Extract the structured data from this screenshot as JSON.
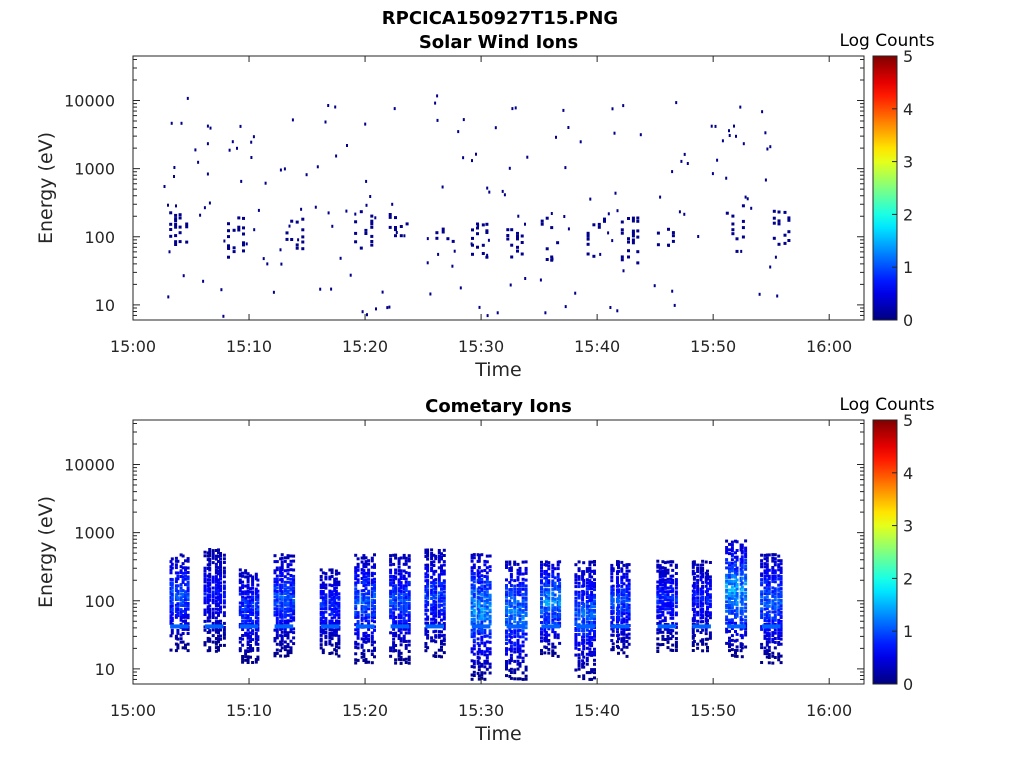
{
  "figure_title": "RPCICA150927T15.PNG",
  "colors": {
    "low": "#00008f",
    "mid": "#00ffff",
    "high": "#800000",
    "axis": "#262626",
    "background": "#ffffff"
  },
  "chart_data": [
    {
      "type": "heatmap",
      "title": "Solar Wind Ions",
      "xlabel": "Time",
      "ylabel": "Energy (eV)",
      "yscale": "log",
      "xlim": [
        "15:00",
        "16:03"
      ],
      "ylim": [
        6,
        45000
      ],
      "xticks": [
        "15:00",
        "15:10",
        "15:20",
        "15:30",
        "15:40",
        "15:50",
        "16:00"
      ],
      "yticks": [
        "10",
        "100",
        "1000",
        "10000"
      ],
      "colorbar": {
        "label": "Log Counts",
        "range": [
          0,
          5
        ],
        "ticks": [
          "0",
          "1",
          "2",
          "3",
          "4",
          "5"
        ]
      },
      "data_time_range": [
        "15:02",
        "15:56"
      ],
      "bursts": [
        {
          "time": "15:04",
          "energy_range": [
            50,
            300
          ],
          "peak_log_counts": 0
        },
        {
          "time": "15:09",
          "energy_range": [
            40,
            200
          ],
          "peak_log_counts": 0
        },
        {
          "time": "15:14",
          "energy_range": [
            60,
            200
          ],
          "peak_log_counts": 0
        },
        {
          "time": "15:20",
          "energy_range": [
            60,
            300
          ],
          "peak_log_counts": 0
        },
        {
          "time": "15:23",
          "energy_range": [
            60,
            250
          ],
          "peak_log_counts": 0
        },
        {
          "time": "15:27",
          "energy_range": [
            70,
            150
          ],
          "peak_log_counts": 0
        },
        {
          "time": "15:30",
          "energy_range": [
            50,
            200
          ],
          "peak_log_counts": 0
        },
        {
          "time": "15:33",
          "energy_range": [
            50,
            150
          ],
          "peak_log_counts": 0
        },
        {
          "time": "15:36",
          "energy_range": [
            40,
            200
          ],
          "peak_log_counts": 0
        },
        {
          "time": "15:40",
          "energy_range": [
            50,
            200
          ],
          "peak_log_counts": 0
        },
        {
          "time": "15:43",
          "energy_range": [
            40,
            200
          ],
          "peak_log_counts": 0
        },
        {
          "time": "15:46",
          "energy_range": [
            60,
            150
          ],
          "peak_log_counts": 0
        },
        {
          "time": "15:52",
          "energy_range": [
            60,
            300
          ],
          "peak_log_counts": 0
        },
        {
          "time": "15:56",
          "energy_range": [
            70,
            250
          ],
          "peak_log_counts": 0
        }
      ]
    },
    {
      "type": "heatmap",
      "title": "Cometary Ions",
      "xlabel": "Time",
      "ylabel": "Energy (eV)",
      "yscale": "log",
      "xlim": [
        "15:00",
        "16:03"
      ],
      "ylim": [
        6,
        45000
      ],
      "xticks": [
        "15:00",
        "15:10",
        "15:20",
        "15:30",
        "15:40",
        "15:50",
        "16:00"
      ],
      "yticks": [
        "10",
        "100",
        "1000",
        "10000"
      ],
      "colorbar": {
        "label": "Log Counts",
        "range": [
          0,
          5
        ],
        "ticks": [
          "0",
          "1",
          "2",
          "3",
          "4",
          "5"
        ]
      },
      "data_time_range": [
        "15:02",
        "15:56"
      ],
      "bursts": [
        {
          "time": "15:04",
          "energy_range": [
            18,
            500
          ],
          "peak_log_counts": 1.2
        },
        {
          "time": "15:07",
          "energy_range": [
            18,
            600
          ],
          "peak_log_counts": 0.8
        },
        {
          "time": "15:10",
          "energy_range": [
            12,
            300
          ],
          "peak_log_counts": 1.1
        },
        {
          "time": "15:13",
          "energy_range": [
            15,
            500
          ],
          "peak_log_counts": 1.2
        },
        {
          "time": "15:17",
          "energy_range": [
            15,
            300
          ],
          "peak_log_counts": 1.0
        },
        {
          "time": "15:20",
          "energy_range": [
            12,
            500
          ],
          "peak_log_counts": 1.3
        },
        {
          "time": "15:23",
          "energy_range": [
            12,
            500
          ],
          "peak_log_counts": 1.2
        },
        {
          "time": "15:26",
          "energy_range": [
            15,
            600
          ],
          "peak_log_counts": 1.1
        },
        {
          "time": "15:30",
          "energy_range": [
            7,
            500
          ],
          "peak_log_counts": 1.6
        },
        {
          "time": "15:33",
          "energy_range": [
            7,
            400
          ],
          "peak_log_counts": 1.5
        },
        {
          "time": "15:36",
          "energy_range": [
            15,
            400
          ],
          "peak_log_counts": 1.6
        },
        {
          "time": "15:39",
          "energy_range": [
            7,
            400
          ],
          "peak_log_counts": 1.3
        },
        {
          "time": "15:42",
          "energy_range": [
            15,
            400
          ],
          "peak_log_counts": 1.2
        },
        {
          "time": "15:46",
          "energy_range": [
            18,
            400
          ],
          "peak_log_counts": 1.0
        },
        {
          "time": "15:49",
          "energy_range": [
            18,
            400
          ],
          "peak_log_counts": 0.9
        },
        {
          "time": "15:52",
          "energy_range": [
            15,
            800
          ],
          "peak_log_counts": 1.7
        },
        {
          "time": "15:55",
          "energy_range": [
            12,
            500
          ],
          "peak_log_counts": 1.3
        }
      ]
    }
  ]
}
